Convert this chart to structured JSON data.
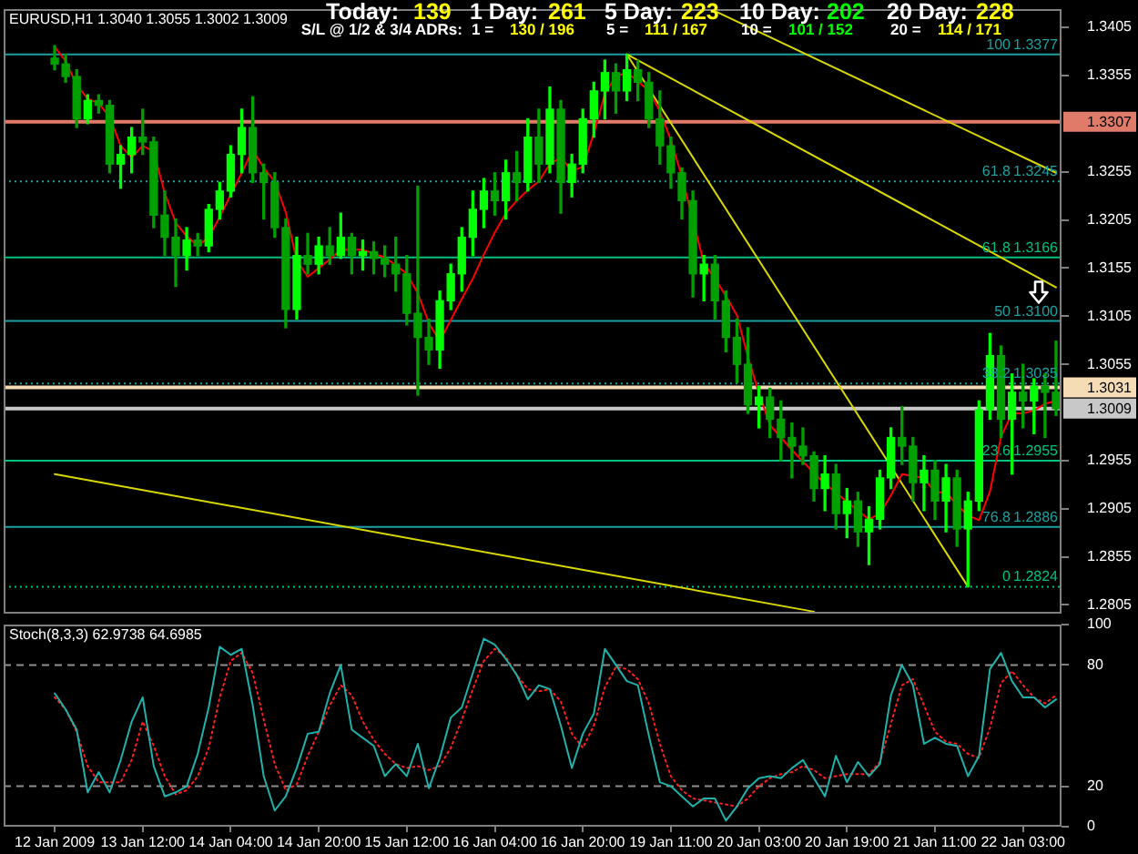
{
  "chart_data": [
    {
      "type": "candlestick",
      "title": "EURUSD,H1 1.3040 1.3055 1.3002 1.3009",
      "categories": [
        null,
        null,
        null,
        null,
        null,
        null,
        null,
        null,
        null,
        null,
        null,
        null,
        null,
        null,
        null,
        null,
        null,
        null,
        null,
        null,
        null,
        null,
        null,
        null,
        null,
        null,
        null,
        null,
        null,
        null,
        null,
        null,
        null,
        null,
        null,
        null,
        null,
        null,
        null,
        null,
        null,
        null,
        null,
        null,
        null,
        null,
        null,
        null,
        null,
        null,
        null,
        null,
        null,
        null,
        null,
        null,
        null,
        null,
        null,
        null,
        null,
        null,
        null,
        null,
        null,
        null,
        null,
        null,
        null,
        null,
        null,
        null,
        null,
        null,
        null,
        null,
        null,
        null,
        null,
        null,
        null,
        null,
        null,
        null,
        null,
        null,
        null,
        null,
        null,
        null,
        null,
        null
      ],
      "ohlc": [
        [
          1.3373,
          1.3386,
          1.3361,
          1.3367
        ],
        [
          1.3367,
          1.3377,
          1.3348,
          1.3354
        ],
        [
          1.3354,
          1.3361,
          1.3301,
          1.331
        ],
        [
          1.331,
          1.3335,
          1.3305,
          1.3329
        ],
        [
          1.3329,
          1.3335,
          1.3316,
          1.3324
        ],
        [
          1.3324,
          1.3329,
          1.3254,
          1.3263
        ],
        [
          1.3263,
          1.3282,
          1.3238,
          1.3273
        ],
        [
          1.3273,
          1.3301,
          1.3254,
          1.3291
        ],
        [
          1.3291,
          1.332,
          1.3273,
          1.3286
        ],
        [
          1.3286,
          1.3291,
          1.3197,
          1.321
        ],
        [
          1.321,
          1.3235,
          1.3168,
          1.3187
        ],
        [
          1.3187,
          1.3206,
          1.3136,
          1.3168
        ],
        [
          1.3168,
          1.3197,
          1.3153,
          1.3184
        ],
        [
          1.3184,
          1.3191,
          1.3168,
          1.3178
        ],
        [
          1.3178,
          1.3221,
          1.3172,
          1.3216
        ],
        [
          1.3216,
          1.3244,
          1.3206,
          1.3235
        ],
        [
          1.3235,
          1.3282,
          1.3229,
          1.3273
        ],
        [
          1.3273,
          1.332,
          1.3254,
          1.3301
        ],
        [
          1.3301,
          1.3333,
          1.3244,
          1.3254
        ],
        [
          1.3254,
          1.3263,
          1.3206,
          1.3244
        ],
        [
          1.3244,
          1.3254,
          1.3187,
          1.3197
        ],
        [
          1.3197,
          1.3206,
          1.3093,
          1.3112
        ],
        [
          1.3112,
          1.3187,
          1.3102,
          1.3168
        ],
        [
          1.3168,
          1.3191,
          1.3149,
          1.3159
        ],
        [
          1.3159,
          1.3187,
          1.3149,
          1.3178
        ],
        [
          1.3178,
          1.3197,
          1.3159,
          1.3168
        ],
        [
          1.3168,
          1.3212,
          1.3165,
          1.3187
        ],
        [
          1.3187,
          1.3191,
          1.3149,
          1.3168
        ],
        [
          1.3168,
          1.3184,
          1.3153,
          1.3172
        ],
        [
          1.3172,
          1.3182,
          1.3149,
          1.3165
        ],
        [
          1.3165,
          1.3178,
          1.3146,
          1.3159
        ],
        [
          1.3159,
          1.3187,
          1.3131,
          1.3149
        ],
        [
          1.3149,
          1.3168,
          1.3096,
          1.3108
        ],
        [
          1.3108,
          1.324,
          1.3023,
          1.3083
        ],
        [
          1.3083,
          1.3102,
          1.3055,
          1.307
        ],
        [
          1.307,
          1.3131,
          1.3051,
          1.3121
        ],
        [
          1.3121,
          1.3159,
          1.3112,
          1.3149
        ],
        [
          1.3149,
          1.3197,
          1.3131,
          1.3187
        ],
        [
          1.3187,
          1.3235,
          1.3168,
          1.3216
        ],
        [
          1.3216,
          1.3248,
          1.3197,
          1.3235
        ],
        [
          1.3235,
          1.3254,
          1.321,
          1.3225
        ],
        [
          1.3225,
          1.3267,
          1.3206,
          1.3254
        ],
        [
          1.3254,
          1.3276,
          1.3225,
          1.3244
        ],
        [
          1.3244,
          1.331,
          1.3235,
          1.3291
        ],
        [
          1.3291,
          1.332,
          1.3244,
          1.3263
        ],
        [
          1.3263,
          1.3343,
          1.3254,
          1.332
        ],
        [
          1.332,
          1.3329,
          1.3212,
          1.3244
        ],
        [
          1.3244,
          1.3273,
          1.3229,
          1.3263
        ],
        [
          1.3263,
          1.332,
          1.3254,
          1.331
        ],
        [
          1.331,
          1.3348,
          1.3291,
          1.3339
        ],
        [
          1.3339,
          1.3371,
          1.331,
          1.3358
        ],
        [
          1.3358,
          1.3367,
          1.3316,
          1.3339
        ],
        [
          1.3339,
          1.3377,
          1.3329,
          1.3361
        ],
        [
          1.3361,
          1.3371,
          1.3329,
          1.3348
        ],
        [
          1.3348,
          1.3358,
          1.3301,
          1.331
        ],
        [
          1.331,
          1.3339,
          1.3263,
          1.3282
        ],
        [
          1.3282,
          1.3291,
          1.3238,
          1.3254
        ],
        [
          1.3254,
          1.3259,
          1.3206,
          1.3225
        ],
        [
          1.3225,
          1.3235,
          1.3125,
          1.3149
        ],
        [
          1.3149,
          1.3168,
          1.3121,
          1.3159
        ],
        [
          1.3159,
          1.3168,
          1.3102,
          1.3121
        ],
        [
          1.3121,
          1.3131,
          1.3068,
          1.3083
        ],
        [
          1.3083,
          1.3102,
          1.3036,
          1.3055
        ],
        [
          1.3055,
          1.3093,
          1.3004,
          1.3013
        ],
        [
          1.3013,
          1.3032,
          1.2989,
          1.3021
        ],
        [
          1.3021,
          1.303,
          1.2979,
          1.2998
        ],
        [
          1.2998,
          1.3017,
          1.2955,
          1.2979
        ],
        [
          1.2979,
          1.2994,
          1.2937,
          1.297
        ],
        [
          1.297,
          1.2989,
          1.2951,
          1.296
        ],
        [
          1.296,
          1.2964,
          1.2913,
          1.2926
        ],
        [
          1.2926,
          1.296,
          1.2903,
          1.2941
        ],
        [
          1.2941,
          1.2951,
          1.2884,
          1.29
        ],
        [
          1.29,
          1.2926,
          1.2875,
          1.2913
        ],
        [
          1.2913,
          1.2922,
          1.2866,
          1.2881
        ],
        [
          1.2881,
          1.2907,
          1.2847,
          1.2894
        ],
        [
          1.2894,
          1.2945,
          1.2884,
          1.2937
        ],
        [
          1.2937,
          1.2989,
          1.2926,
          1.2979
        ],
        [
          1.2979,
          1.3011,
          1.2951,
          1.297
        ],
        [
          1.297,
          1.2979,
          1.2913,
          1.2932
        ],
        [
          1.2932,
          1.296,
          1.2903,
          1.2945
        ],
        [
          1.2945,
          1.2955,
          1.2894,
          1.2913
        ],
        [
          1.2913,
          1.2951,
          1.2881,
          1.2937
        ],
        [
          1.2937,
          1.2945,
          1.2866,
          1.2884
        ],
        [
          1.2884,
          1.2922,
          1.2824,
          1.2913
        ],
        [
          1.2913,
          1.3017,
          1.2903,
          1.3008
        ],
        [
          1.3008,
          1.3087,
          1.2998,
          1.3064
        ],
        [
          1.3064,
          1.3074,
          1.2979,
          1.2998
        ],
        [
          1.2998,
          1.3045,
          1.2941,
          1.3026
        ],
        [
          1.3026,
          1.3055,
          1.2989,
          1.3017
        ],
        [
          1.3017,
          1.304,
          1.2983,
          1.3032
        ],
        [
          1.3032,
          1.3045,
          1.2979,
          1.3026
        ],
        [
          1.3026,
          1.3079,
          1.3002,
          1.3009
        ]
      ],
      "colors": [
        "#00a000",
        "#00a000",
        "#00a000",
        "#00ff00",
        "#00a000",
        "#00a000",
        "#00ff00",
        "#00ff00",
        "#00a000",
        "#00a000",
        "#00a000",
        "#00a000",
        "#00ff00",
        "#00a000",
        "#00ff00",
        "#00ff00",
        "#00ff00",
        "#00ff00",
        "#00a000",
        "#00a000",
        "#00a000",
        "#00a000",
        "#00ff00",
        "#00a000",
        "#00ff00",
        "#00a000",
        "#00ff00",
        "#00a000",
        "#00ff00",
        "#00a000",
        "#00a000",
        "#00a000",
        "#00a000",
        "#00a000",
        "#00a000",
        "#00ff00",
        "#00ff00",
        "#00ff00",
        "#00ff00",
        "#00ff00",
        "#00a000",
        "#00ff00",
        "#00a000",
        "#00ff00",
        "#00a000",
        "#00ff00",
        "#00a000",
        "#00ff00",
        "#00ff00",
        "#00ff00",
        "#00ff00",
        "#00a000",
        "#00ff00",
        "#00a000",
        "#00a000",
        "#00a000",
        "#00a000",
        "#00a000",
        "#00a000",
        "#00ff00",
        "#00a000",
        "#00a000",
        "#00a000",
        "#00a000",
        "#00ff00",
        "#00a000",
        "#00a000",
        "#00a000",
        "#00a000",
        "#00a000",
        "#00ff00",
        "#00a000",
        "#00ff00",
        "#00a000",
        "#00ff00",
        "#00ff00",
        "#00ff00",
        "#00a000",
        "#00a000",
        "#00ff00",
        "#00a000",
        "#00ff00",
        "#00a000",
        "#00ff00",
        "#00ff00",
        "#00ff00",
        "#00a000",
        "#00ff00",
        "#00a000",
        "#00ff00",
        "#00a000",
        "#00a000"
      ],
      "series": [
        {
          "type": "line",
          "color": "#ff0000",
          "values": [
            1.3385,
            1.337,
            1.3345,
            1.3331,
            1.3326,
            1.3312,
            1.3282,
            1.327,
            1.3282,
            1.3276,
            1.3233,
            1.3202,
            1.3188,
            1.3178,
            1.3187,
            1.3208,
            1.3231,
            1.3254,
            1.3278,
            1.3259,
            1.3245,
            1.3213,
            1.3163,
            1.3146,
            1.3155,
            1.3164,
            1.3174,
            1.3174,
            1.3174,
            1.317,
            1.3166,
            1.3158,
            1.3149,
            1.3129,
            1.3098,
            1.3079,
            1.3101,
            1.3123,
            1.3144,
            1.3169,
            1.3192,
            1.3212,
            1.3225,
            1.3236,
            1.3245,
            1.3263,
            1.327,
            1.3256,
            1.326,
            1.3295,
            1.3336,
            1.3354,
            1.3358,
            1.3349,
            1.3339,
            1.3318,
            1.3288,
            1.325,
            null,
            1.316,
            1.3144,
            1.3126,
            1.3106,
            1.3063,
            1.3025,
            1.2992,
            1.2979,
            1.2966,
            1.2954,
            1.2942,
            1.2931,
            1.2922,
            1.2912,
            1.2903,
            1.2894,
            1.29,
            1.2919,
            1.2941,
            null,
            1.2937,
            1.2922,
            1.2922,
            1.2909,
            1.2898,
            1.2893,
            1.2923,
            1.298,
            1.3004,
            1.3004,
            1.3007,
            1.3014,
            1.3017
          ]
        },
        {
          "type": "line",
          "color": "#d8d800",
          "values": [
            null,
            null,
            null,
            null,
            null,
            null,
            null,
            null,
            null,
            null,
            null,
            null,
            null,
            null,
            null,
            null,
            null,
            null,
            null,
            null,
            null,
            null,
            null,
            null,
            null,
            null,
            null,
            null,
            null,
            null,
            null,
            null,
            null,
            null,
            null,
            null,
            null,
            null,
            null,
            null,
            null,
            null,
            null,
            null,
            null,
            null,
            null,
            null,
            null,
            null,
            null,
            null,
            1.3377,
            null,
            null,
            null,
            null,
            null,
            null,
            null,
            null,
            null,
            null,
            null,
            null,
            null,
            null,
            null,
            null,
            null,
            null,
            null,
            null,
            null,
            null,
            null,
            null,
            null,
            null,
            null,
            null,
            null,
            null,
            1.2824,
            null,
            null,
            null,
            null,
            null,
            null,
            null,
            null
          ]
        },
        {
          "type": "line",
          "color": "#d8d800",
          "values": [
            null,
            null,
            null,
            null,
            null,
            null,
            null,
            null,
            null,
            null,
            null,
            null,
            null,
            null,
            null,
            null,
            null,
            null,
            null,
            null,
            null,
            null,
            null,
            null,
            null,
            null,
            null,
            null,
            null,
            null,
            null,
            null,
            null,
            null,
            null,
            null,
            null,
            null,
            null,
            null,
            null,
            null,
            null,
            null,
            null,
            null,
            null,
            null,
            null,
            null,
            null,
            null,
            1.3377,
            null,
            null,
            null,
            null,
            null,
            null,
            null,
            null,
            null,
            null,
            null,
            null,
            null,
            null,
            null,
            null,
            null,
            null,
            null,
            null,
            null,
            null,
            null,
            null,
            null,
            null,
            null,
            null,
            null,
            null,
            null,
            null,
            null,
            null,
            null,
            null,
            null,
            null,
            1.3135
          ]
        },
        {
          "type": "line",
          "color": "#d8d800",
          "values": [
            null,
            null,
            null,
            null,
            null,
            null,
            null,
            null,
            null,
            null,
            null,
            null,
            null,
            null,
            null,
            null,
            null,
            null,
            null,
            null,
            null,
            null,
            null,
            null,
            null,
            null,
            null,
            null,
            null,
            null,
            null,
            null,
            null,
            null,
            null,
            null,
            null,
            null,
            null,
            null,
            null,
            null,
            null,
            null,
            null,
            null,
            null,
            null,
            null,
            null,
            null,
            null,
            null,
            null,
            null,
            null,
            null,
            null,
            null,
            null,
            1.3422,
            null,
            null,
            null,
            null,
            null,
            null,
            null,
            null,
            null,
            null,
            null,
            null,
            null,
            null,
            null,
            null,
            null,
            null,
            null,
            null,
            null,
            null,
            null,
            null,
            null,
            null,
            null,
            null,
            null,
            null,
            1.3254
          ]
        },
        {
          "type": "line",
          "color": "#d8d800",
          "values": [
            1.2941,
            null,
            null,
            null,
            null,
            null,
            null,
            null,
            null,
            null,
            null,
            null,
            null,
            null,
            null,
            null,
            null,
            null,
            null,
            null,
            null,
            null,
            null,
            null,
            null,
            null,
            null,
            null,
            null,
            null,
            null,
            null,
            null,
            null,
            null,
            null,
            null,
            null,
            null,
            null,
            null,
            null,
            null,
            null,
            null,
            null,
            null,
            null,
            null,
            null,
            null,
            null,
            null,
            null,
            null,
            null,
            null,
            null,
            null,
            null,
            null,
            null,
            null,
            null,
            null,
            null,
            null,
            null,
            null,
            1.2798,
            null,
            null,
            null,
            null,
            null,
            null,
            null,
            null,
            null,
            null,
            null,
            null,
            null,
            null,
            null,
            null,
            null,
            null,
            null,
            null,
            null,
            null
          ]
        }
      ],
      "ylim": [
        1.2796,
        1.3424
      ],
      "yticks": [
        1.2805,
        1.2855,
        1.2905,
        1.2955,
        1.3055,
        1.3105,
        1.3155,
        1.3205,
        1.3255,
        1.3355,
        1.3405
      ],
      "ref_lines": [
        {
          "axis": "y",
          "value": 1.3307,
          "label": "1.3307",
          "color": "#e07b6a"
        },
        {
          "axis": "y",
          "value": 1.3031,
          "label": "1.3031",
          "color": "#f5dcb4"
        },
        {
          "axis": "y",
          "value": 1.3009,
          "label": "1.3009",
          "color": "#c8c8c8"
        },
        {
          "axis": "y",
          "value": 1.3377,
          "color": "#1ca0a0"
        },
        {
          "axis": "y",
          "value": 1.3245,
          "color": "#1ca0a0",
          "line_style": "dotted"
        },
        {
          "axis": "y",
          "value": 1.3166,
          "color": "#00c080"
        },
        {
          "axis": "y",
          "value": 1.31,
          "color": "#1ca0a0"
        },
        {
          "axis": "y",
          "value": 1.3035,
          "color": "#1ca0a0",
          "line_style": "dotted"
        },
        {
          "axis": "y",
          "value": 1.2955,
          "color": "#00c080"
        },
        {
          "axis": "y",
          "value": 1.2886,
          "color": "#1ca0a0"
        },
        {
          "axis": "y",
          "value": 1.2824,
          "color": "#00c080",
          "line_style": "dotted"
        }
      ],
      "annotations": [
        "Today:",
        "139",
        "1 Day:",
        "261",
        "5 Day:",
        "223",
        "10 Day:",
        "202",
        "20 Day:",
        "228",
        "S/L @ 1/2 & 3/4 ADRs:",
        "1 =",
        "130 / 196",
        "5 =",
        "111 / 167",
        "10 =",
        "101 / 152",
        "20 =",
        "114 / 171",
        {
          "text": "100",
          "y": 1.3377
        },
        {
          "text": "1.3377",
          "y": 1.3377
        },
        {
          "text": "61.8",
          "y": 1.3245
        },
        {
          "text": "1.3245",
          "y": 1.3245
        },
        {
          "text": "61.8",
          "y": 1.3166
        },
        {
          "text": "1.3166",
          "y": 1.3166
        },
        {
          "text": "50",
          "y": 1.31
        },
        {
          "text": "1.3100",
          "y": 1.31
        },
        {
          "text": "38.2",
          "y": 1.3035
        },
        {
          "text": "1.3035",
          "y": 1.3035
        },
        {
          "text": "23.6",
          "y": 1.2955
        },
        {
          "text": "1.2955",
          "y": 1.2955
        },
        {
          "text": "76.8",
          "y": 1.2886
        },
        {
          "text": "1.2886",
          "y": 1.2886
        },
        {
          "text": "0",
          "y": 1.2824
        },
        {
          "text": "1.2824",
          "y": 1.2824
        }
      ],
      "tick_labels": "y",
      "grid": false,
      "legend": false,
      "marker": "none"
    },
    {
      "type": "line",
      "title": "Stoch(8,3,3) 62.9738 64.6985",
      "categories": [
        "12 Jan 2009",
        null,
        null,
        null,
        null,
        null,
        null,
        null,
        "13 Jan 12:00",
        null,
        null,
        null,
        null,
        null,
        null,
        null,
        "14 Jan 04:00",
        null,
        null,
        null,
        null,
        null,
        null,
        null,
        "14 Jan 20:00",
        null,
        null,
        null,
        null,
        null,
        null,
        null,
        "15 Jan 12:00",
        null,
        null,
        null,
        null,
        null,
        null,
        null,
        "16 Jan 04:00",
        null,
        null,
        null,
        null,
        null,
        null,
        null,
        "16 Jan 20:00",
        null,
        null,
        null,
        null,
        null,
        null,
        null,
        "19 Jan 11:00",
        null,
        null,
        null,
        null,
        null,
        null,
        null,
        "20 Jan 03:00",
        null,
        null,
        null,
        null,
        null,
        null,
        null,
        "20 Jan 19:00",
        null,
        null,
        null,
        null,
        null,
        null,
        null,
        "21 Jan 11:00",
        null,
        null,
        null,
        null,
        null,
        null,
        null,
        "22 Jan 03:00",
        null,
        null,
        null
      ],
      "series": [
        {
          "color": "#20b2aa",
          "values": [
            66,
            58,
            48,
            17,
            27,
            17,
            33,
            52,
            64,
            30,
            15,
            17,
            20,
            36,
            59,
            89,
            85,
            88,
            60,
            25,
            8,
            15,
            29,
            46,
            47,
            66,
            80,
            48,
            44,
            40,
            25,
            31,
            25,
            41,
            19,
            34,
            54,
            59,
            76,
            93,
            90,
            83,
            75,
            63,
            70,
            68,
            50,
            29,
            46,
            56,
            88,
            80,
            72,
            70,
            45,
            22,
            20,
            15,
            10,
            14,
            14,
            3,
            10,
            19,
            24,
            25,
            24,
            29,
            33,
            24,
            15,
            35,
            22,
            32,
            25,
            31,
            65,
            80,
            70,
            41,
            44,
            41,
            40,
            25,
            35,
            78,
            86,
            72,
            64,
            64,
            59,
            63
          ]
        },
        {
          "color": "#ff2020",
          "line_style": "dotted",
          "values": [
            64,
            58,
            47,
            30,
            22,
            22,
            22,
            33,
            52,
            40,
            25,
            16,
            18,
            25,
            39,
            64,
            82,
            86,
            76,
            53,
            31,
            18,
            21,
            35,
            47,
            60,
            70,
            65,
            52,
            43,
            36,
            31,
            29,
            30,
            28,
            30,
            39,
            53,
            68,
            82,
            88,
            84,
            75,
            68,
            67,
            68,
            62,
            46,
            39,
            50,
            69,
            79,
            78,
            73,
            61,
            41,
            25,
            18,
            14,
            13,
            12,
            11,
            10,
            14,
            20,
            24,
            26,
            27,
            30,
            28,
            24,
            25,
            26,
            26,
            26,
            32,
            51,
            70,
            73,
            60,
            47,
            42,
            41,
            36,
            34,
            49,
            71,
            77,
            70,
            64,
            61,
            65
          ]
        }
      ],
      "ylim": [
        0,
        100
      ],
      "yticks": [
        0,
        20,
        80,
        100
      ],
      "ref_lines": [
        {
          "axis": "y",
          "value": 80,
          "color": "#909090",
          "line_style": "dashed"
        },
        {
          "axis": "y",
          "value": 20,
          "color": "#909090",
          "line_style": "dashed"
        }
      ],
      "grid": false,
      "legend": false,
      "marker": "none"
    }
  ]
}
